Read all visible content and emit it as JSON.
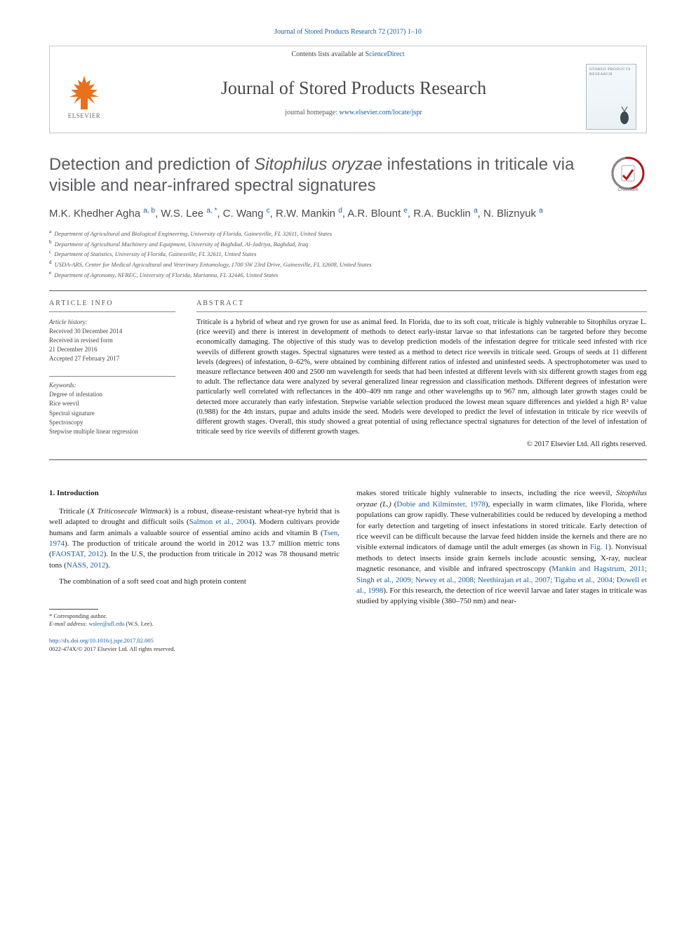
{
  "citation": "Journal of Stored Products Research 72 (2017) 1–10",
  "header": {
    "contents_prefix": "Contents lists available at ",
    "contents_link": "ScienceDirect",
    "journal_name": "Journal of Stored Products Research",
    "homepage_prefix": "journal homepage: ",
    "homepage_url": "www.elsevier.com/locate/jspr",
    "elsevier_label": "ELSEVIER",
    "cover_title": "STORED PRODUCTS RESEARCH"
  },
  "article": {
    "title_pre": "Detection and prediction of ",
    "title_ital": "Sitophilus oryzae",
    "title_post": " infestations in triticale via visible and near-infrared spectral signatures",
    "crossmark_label": "CrossMark",
    "authors_html": "M.K. Khedher Agha <sup>a, b</sup>, W.S. Lee <sup>a, *</sup>, C. Wang <sup>c</sup>, R.W. Mankin <sup>d</sup>, A.R. Blount <sup>e</sup>, R.A. Bucklin <sup>a</sup>, N. Bliznyuk <sup>a</sup>",
    "affiliations": [
      {
        "sup": "a",
        "text": "Department of Agricultural and Biological Engineering, University of Florida, Gainesville, FL 32611, United States"
      },
      {
        "sup": "b",
        "text": "Department of Agricultural Machinery and Equipment, University of Baghdad, Al-Jadriya, Baghdad, Iraq"
      },
      {
        "sup": "c",
        "text": "Department of Statistics, University of Florida, Gainesville, FL 32611, United States"
      },
      {
        "sup": "d",
        "text": "USDA-ARS, Center for Medical Agricultural and Veterinary Entomology, 1700 SW 23rd Drive, Gainesville, FL 32608, United States"
      },
      {
        "sup": "e",
        "text": "Department of Agronomy, NFREC, University of Florida, Marianna, FL 32446, United States"
      }
    ]
  },
  "info": {
    "heading": "article info",
    "history_label": "Article history:",
    "history": [
      "Received 30 December 2014",
      "Received in revised form",
      "21 December 2016",
      "Accepted 27 February 2017"
    ],
    "keywords_label": "Keywords:",
    "keywords": [
      "Degree of infestation",
      "Rice weevil",
      "Spectral signature",
      "Spectroscopy",
      "Stepwise multiple linear regression"
    ]
  },
  "abstract": {
    "heading": "abstract",
    "body": "Triticale is a hybrid of wheat and rye grown for use as animal feed. In Florida, due to its soft coat, triticale is highly vulnerable to Sitophilus oryzae L. (rice weevil) and there is interest in development of methods to detect early-instar larvae so that infestations can be targeted before they become economically damaging. The objective of this study was to develop prediction models of the infestation degree for triticale seed infested with rice weevils of different growth stages. Spectral signatures were tested as a method to detect rice weevils in triticale seed. Groups of seeds at 11 different levels (degrees) of infestation, 0–62%, were obtained by combining different ratios of infested and uninfested seeds. A spectrophotometer was used to measure reflectance between 400 and 2500 nm wavelength for seeds that had been infested at different levels with six different growth stages from egg to adult. The reflectance data were analyzed by several generalized linear regression and classification methods. Different degrees of infestation were particularly well correlated with reflectances in the 400–409 nm range and other wavelengths up to 967 nm, although later growth stages could be detected more accurately than early infestation. Stepwise variable selection produced the lowest mean square differences and yielded a high R² value (0.988) for the 4th instars, pupae and adults inside the seed. Models were developed to predict the level of infestation in triticale by rice weevils of different growth stages. Overall, this study showed a great potential of using reflectance spectral signatures for detection of the level of infestation of triticale seed by rice weevils of different growth stages.",
    "copyright": "© 2017 Elsevier Ltd. All rights reserved."
  },
  "body": {
    "section_heading": "1. Introduction",
    "col1": {
      "p1_a": "Triticale (",
      "p1_ital": "X Triticosecale Wittmack",
      "p1_b": ") is a robust, disease-resistant wheat-rye hybrid that is well adapted to drought and difficult soils (",
      "p1_ref1": "Salmon et al., 2004",
      "p1_c": "). Modern cultivars provide humans and farm animals a valuable source of essential amino acids and vitamin B (",
      "p1_ref2": "Tsen, 1974",
      "p1_d": "). The production of triticale around the world in 2012 was 13.7 million metric tons (",
      "p1_ref3": "FAOSTAT, 2012",
      "p1_e": "). In the U.S, the production from triticale in 2012 was 78 thousand metric tons (",
      "p1_ref4": "NASS, 2012",
      "p1_f": ").",
      "p2": "The combination of a soft seed coat and high protein content"
    },
    "col2": {
      "p1_a": "makes stored triticale highly vulnerable to insects, including the rice weevil, ",
      "p1_ital": "Sitophilus oryzae (L.)",
      "p1_b": " (",
      "p1_ref1": "Dobie and Kilminster, 1978",
      "p1_c": "), especially in warm climates, like Florida, where populations can grow rapidly. These vulnerabilities could be reduced by developing a method for early detection and targeting of insect infestations in stored triticale. Early detection of rice weevil can be difficult because the larvae feed hidden inside the kernels and there are no visible external indicators of damage until the adult emerges (as shown in ",
      "p1_ref2": "Fig. 1",
      "p1_d": "). Nonvisual methods to detect insects inside grain kernels include acoustic sensing, X-ray, nuclear magnetic resonance, and visible and infrared spectroscopy (",
      "p1_ref3": "Mankin and Hagstrum, 2011; Singh et al., 2009; Newey et al., 2008; Neethirajan et al., 2007; Tigabu et al., 2004; Dowell et al., 1998",
      "p1_e": "). For this research, the detection of rice weevil larvae and later stages in triticale was studied by applying visible (380–750 nm) and near-"
    }
  },
  "footnotes": {
    "corr": "* Corresponding author.",
    "email_label": "E-mail address: ",
    "email": "wslee@ufl.edu",
    "email_name": " (W.S. Lee)."
  },
  "doi": {
    "url": "http://dx.doi.org/10.1016/j.jspr.2017.02.005",
    "issn_line": "0022-474X/© 2017 Elsevier Ltd. All rights reserved."
  },
  "colors": {
    "link": "#1a5c9e",
    "elsevier_orange": "#e9711c",
    "text": "#2a2a2a",
    "title_gray": "#5a5a60"
  }
}
